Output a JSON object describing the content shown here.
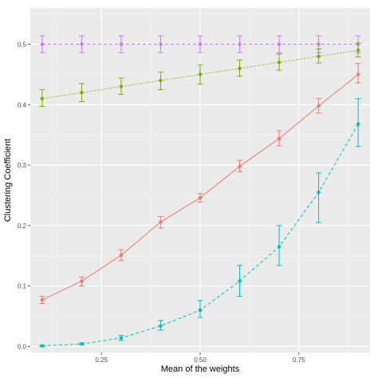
{
  "chart_data": {
    "type": "line",
    "xlabel": "Mean of the weights",
    "ylabel": "Clustering Coefficient",
    "xlim": [
      0.07,
      0.93
    ],
    "ylim": [
      -0.01,
      0.56
    ],
    "x_ticks": [
      "0.25",
      "0.50",
      "0.75"
    ],
    "x_tick_values": [
      0.25,
      0.5,
      0.75
    ],
    "y_ticks": [
      "0.0",
      "0.1",
      "0.2",
      "0.3",
      "0.4",
      "0.5"
    ],
    "y_tick_values": [
      0.0,
      0.1,
      0.2,
      0.3,
      0.4,
      0.5
    ],
    "grid": true,
    "legend": "none",
    "panel_background": "#ebebeb",
    "x": [
      0.1,
      0.2,
      0.3,
      0.4,
      0.5,
      0.6,
      0.7,
      0.8,
      0.9
    ],
    "series": [
      {
        "color": "#c77cff",
        "line_style": "dashed",
        "values": [
          0.5,
          0.5,
          0.5,
          0.5,
          0.5,
          0.5,
          0.5,
          0.5,
          0.5
        ],
        "err_low": [
          0.486,
          0.486,
          0.486,
          0.486,
          0.486,
          0.486,
          0.486,
          0.486,
          0.486
        ],
        "err_high": [
          0.514,
          0.514,
          0.514,
          0.514,
          0.514,
          0.514,
          0.514,
          0.514,
          0.514
        ]
      },
      {
        "color": "#7cae00",
        "line_style": "dotted",
        "values": [
          0.41,
          0.42,
          0.43,
          0.44,
          0.45,
          0.46,
          0.47,
          0.48,
          0.49
        ],
        "err_low": [
          0.397,
          0.405,
          0.417,
          0.425,
          0.434,
          0.447,
          0.457,
          0.469,
          0.479
        ],
        "err_high": [
          0.425,
          0.435,
          0.444,
          0.454,
          0.466,
          0.474,
          0.484,
          0.492,
          0.502
        ]
      },
      {
        "color": "#f8766d",
        "line_style": "solid",
        "values": [
          0.077,
          0.108,
          0.151,
          0.206,
          0.246,
          0.298,
          0.344,
          0.398,
          0.45
        ],
        "err_low": [
          0.071,
          0.1,
          0.142,
          0.196,
          0.239,
          0.289,
          0.332,
          0.386,
          0.436
        ],
        "err_high": [
          0.083,
          0.115,
          0.16,
          0.215,
          0.253,
          0.308,
          0.357,
          0.41,
          0.468
        ]
      },
      {
        "color": "#00bfc4",
        "line_style": "dashed",
        "values": [
          0.001,
          0.004,
          0.014,
          0.034,
          0.06,
          0.108,
          0.165,
          0.255,
          0.368
        ],
        "err_low": [
          0.0,
          0.003,
          0.01,
          0.027,
          0.048,
          0.083,
          0.134,
          0.205,
          0.331
        ],
        "err_high": [
          0.002,
          0.006,
          0.018,
          0.043,
          0.076,
          0.134,
          0.2,
          0.287,
          0.41
        ]
      }
    ]
  }
}
